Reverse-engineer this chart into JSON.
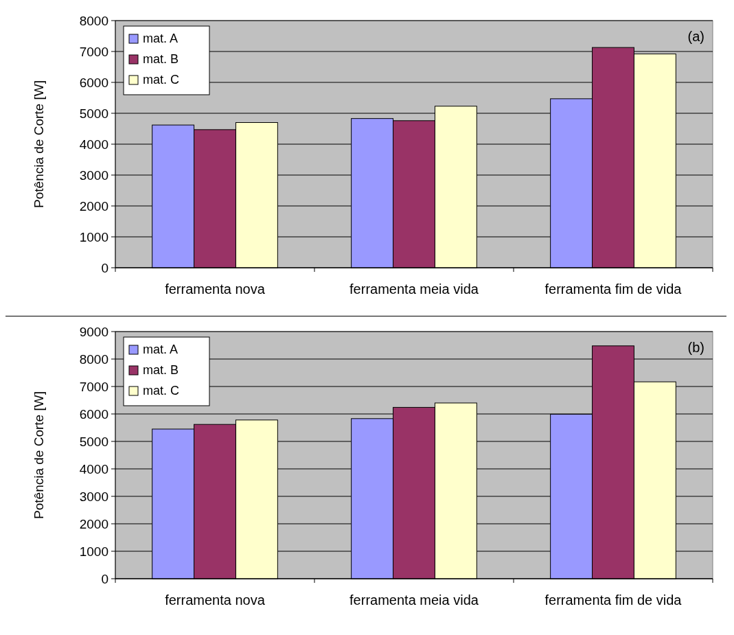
{
  "chart_data": [
    {
      "type": "bar",
      "categories": [
        "ferramenta nova",
        "ferramenta meia vida",
        "ferramenta fim de vida"
      ],
      "ylabel": "Potência de Corte [W]",
      "ylim": [
        0,
        8000
      ],
      "yticks": [
        0,
        1000,
        2000,
        3000,
        4000,
        5000,
        6000,
        7000,
        8000
      ],
      "grid": "y",
      "legend": "top left",
      "annotations": [
        "(a)"
      ],
      "series": [
        {
          "name": "mat. A",
          "color": "#9999ff",
          "values": [
            4620,
            4830,
            5470
          ]
        },
        {
          "name": "mat. B",
          "color": "#993366",
          "values": [
            4470,
            4760,
            7130
          ]
        },
        {
          "name": "mat. C",
          "color": "#ffffcc",
          "values": [
            4700,
            5230,
            6920
          ]
        }
      ]
    },
    {
      "type": "bar",
      "categories": [
        "ferramenta nova",
        "ferramenta meia vida",
        "ferramenta fim de vida"
      ],
      "ylabel": "Potência de Corte [W]",
      "ylim": [
        0,
        9000
      ],
      "yticks": [
        0,
        1000,
        2000,
        3000,
        4000,
        5000,
        6000,
        7000,
        8000,
        9000
      ],
      "grid": "y",
      "legend": "top left",
      "annotations": [
        "(b)"
      ],
      "series": [
        {
          "name": "mat. A",
          "color": "#9999ff",
          "values": [
            5450,
            5830,
            5990
          ]
        },
        {
          "name": "mat. B",
          "color": "#993366",
          "values": [
            5620,
            6240,
            8480
          ]
        },
        {
          "name": "mat. C",
          "color": "#ffffcc",
          "values": [
            5780,
            6400,
            7170
          ]
        }
      ]
    }
  ]
}
